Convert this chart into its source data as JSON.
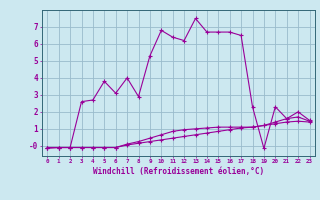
{
  "title": "",
  "xlabel": "Windchill (Refroidissement éolien,°C)",
  "ylabel": "",
  "bg_color": "#cce8f0",
  "grid_color": "#99bbcc",
  "line_color": "#990099",
  "spine_color": "#336677",
  "x_ticks": [
    0,
    1,
    2,
    3,
    4,
    5,
    6,
    7,
    8,
    9,
    10,
    11,
    12,
    13,
    14,
    15,
    16,
    17,
    18,
    19,
    20,
    21,
    22,
    23
  ],
  "y_ticks": [
    0,
    1,
    2,
    3,
    4,
    5,
    6,
    7
  ],
  "y_tick_labels": [
    "-0",
    "1",
    "2",
    "3",
    "4",
    "5",
    "6",
    "7"
  ],
  "ylim": [
    -0.6,
    8.0
  ],
  "xlim": [
    -0.5,
    23.5
  ],
  "series": [
    [
      -0.1,
      -0.1,
      -0.1,
      -0.1,
      -0.1,
      -0.1,
      -0.1,
      0.05,
      0.15,
      0.25,
      0.35,
      0.45,
      0.55,
      0.65,
      0.75,
      0.85,
      0.95,
      1.05,
      1.1,
      1.2,
      1.3,
      1.4,
      1.45,
      1.4
    ],
    [
      -0.1,
      -0.1,
      -0.1,
      -0.1,
      -0.1,
      -0.1,
      -0.1,
      0.1,
      0.25,
      0.45,
      0.65,
      0.85,
      0.95,
      1.0,
      1.05,
      1.1,
      1.1,
      1.1,
      1.1,
      1.2,
      1.4,
      1.6,
      1.7,
      1.45
    ],
    [
      -0.15,
      -0.1,
      -0.1,
      2.6,
      2.7,
      3.8,
      3.1,
      4.0,
      2.9,
      5.3,
      6.8,
      6.4,
      6.2,
      7.5,
      6.7,
      6.7,
      6.7,
      6.5,
      2.3,
      -0.15,
      2.3,
      1.6,
      2.0,
      1.5
    ]
  ]
}
